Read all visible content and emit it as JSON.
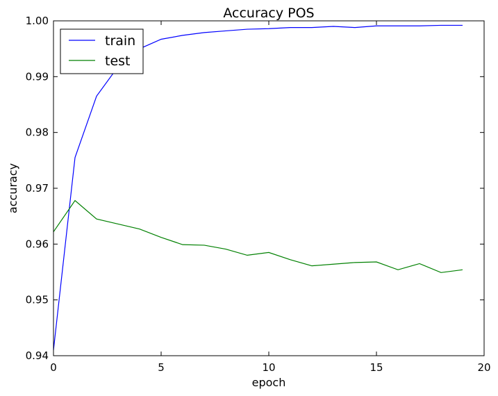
{
  "chart_data": {
    "type": "line",
    "title": "Accuracy POS",
    "xlabel": "epoch",
    "ylabel": "accuracy",
    "xlim": [
      0,
      20
    ],
    "ylim": [
      0.94,
      1.0
    ],
    "xticks": [
      "0",
      "5",
      "10",
      "15",
      "20"
    ],
    "yticks": [
      "0.94",
      "0.95",
      "0.96",
      "0.97",
      "0.98",
      "0.99",
      "1.00"
    ],
    "grid": false,
    "legend_position": "top-left",
    "x": [
      0,
      1,
      2,
      3,
      4,
      5,
      6,
      7,
      8,
      9,
      10,
      11,
      12,
      13,
      14,
      15,
      16,
      17,
      18,
      19
    ],
    "series": [
      {
        "name": "train",
        "color": "#0000ff",
        "values": [
          0.941,
          0.9755,
          0.9865,
          0.9918,
          0.995,
          0.9967,
          0.9974,
          0.9979,
          0.9982,
          0.9985,
          0.9986,
          0.9988,
          0.9988,
          0.999,
          0.9988,
          0.9991,
          0.9991,
          0.9991,
          0.9992,
          0.9992
        ]
      },
      {
        "name": "test",
        "color": "#008000",
        "values": [
          0.9622,
          0.9678,
          0.9645,
          0.9636,
          0.9627,
          0.9612,
          0.9599,
          0.9598,
          0.9591,
          0.958,
          0.9585,
          0.9572,
          0.9561,
          0.9564,
          0.9567,
          0.9568,
          0.9554,
          0.9565,
          0.9549,
          0.9554
        ]
      }
    ]
  }
}
